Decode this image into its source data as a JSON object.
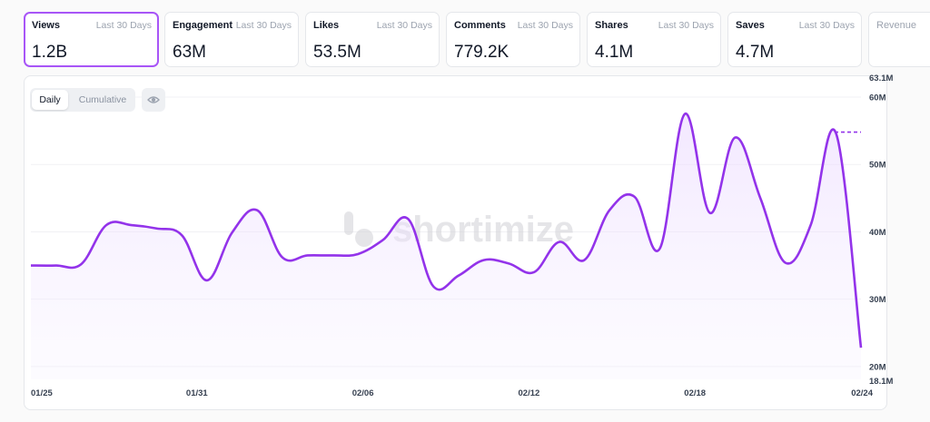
{
  "metrics": [
    {
      "name": "Views",
      "period": "Last 30 Days",
      "value": "1.2B"
    },
    {
      "name": "Engagement",
      "period": "Last 30 Days",
      "value": "63M"
    },
    {
      "name": "Likes",
      "period": "Last 30 Days",
      "value": "53.5M"
    },
    {
      "name": "Comments",
      "period": "Last 30 Days",
      "value": "779.2K"
    },
    {
      "name": "Shares",
      "period": "Last 30 Days",
      "value": "4.1M"
    },
    {
      "name": "Saves",
      "period": "Last 30 Days",
      "value": "4.7M"
    },
    {
      "name": "Revenue",
      "period": "",
      "value": ""
    }
  ],
  "toggle": {
    "daily": "Daily",
    "cumulative": "Cumulative",
    "selected": "Daily"
  },
  "eye_icon": "eye-icon",
  "watermark": "shortimize",
  "colors": {
    "accent": "#a855f7",
    "line": "#9333ea",
    "fill": "#f3e8ff"
  },
  "chart_data": {
    "type": "area",
    "series": [
      {
        "values": [
          35,
          35,
          35.2,
          41,
          41,
          40.5,
          39.5,
          32.8,
          39.9,
          43.2,
          36.2,
          36.5,
          36.5,
          36.7,
          38.8,
          41.9,
          31.9,
          33.5,
          35.8,
          35.3,
          34,
          38.5,
          35.8,
          43.2,
          45.2,
          37.5,
          57.5,
          42.8,
          54,
          45,
          35.4,
          41,
          54.7,
          22.8
        ]
      }
    ],
    "x_ticks": [
      "01/25",
      "01/31",
      "02/06",
      "02/12",
      "02/18",
      "02/24"
    ],
    "y_ticks": [
      "20M",
      "30M",
      "40M",
      "50M",
      "60M"
    ],
    "y_tick_values": [
      20,
      30,
      40,
      50,
      60
    ],
    "y_max_label": "63.1M",
    "y_min_label": "18.1M",
    "ylim": [
      18.1,
      63.1
    ],
    "reference_value": 54.8,
    "grid": true
  }
}
